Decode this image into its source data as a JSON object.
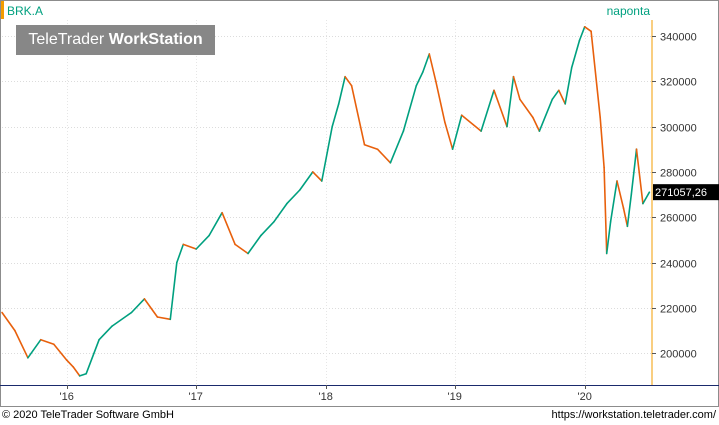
{
  "header": {
    "symbol": "BRK.A",
    "interval": "naponta",
    "brand_left": "TeleTrader",
    "brand_right": "WorkStation"
  },
  "footer": {
    "copyright": "© 2020 TeleTrader Software GmbH",
    "url": "https://workstation.teletrader.com/"
  },
  "colors": {
    "up": "#00a07f",
    "down": "#e8600c",
    "accent": "#f39c00",
    "last_label_bg": "#000000"
  },
  "chart_data": {
    "type": "line",
    "xlabels": [
      "'16",
      "'17",
      "'18",
      "'19",
      "'20"
    ],
    "yticks": [
      200000,
      220000,
      240000,
      260000,
      280000,
      300000,
      320000,
      340000
    ],
    "ytick_labels": [
      "200000",
      "220000",
      "240000",
      "260000",
      "280000",
      "300000",
      "320000",
      "340000"
    ],
    "ylim": [
      186000,
      347000
    ],
    "last_value": 271057.26,
    "last_label": "271057,26",
    "series": [
      {
        "x": [
          2015.5,
          2015.6,
          2015.7,
          2015.8,
          2015.9,
          2016.0,
          2016.05,
          2016.1,
          2016.15,
          2016.25,
          2016.35,
          2016.5,
          2016.6,
          2016.7,
          2016.8,
          2016.85,
          2016.9,
          2017.0,
          2017.1,
          2017.2,
          2017.3,
          2017.4,
          2017.5,
          2017.6,
          2017.7,
          2017.8,
          2017.9,
          2017.97,
          2018.05,
          2018.1,
          2018.15,
          2018.2,
          2018.3,
          2018.4,
          2018.5,
          2018.6,
          2018.7,
          2018.75,
          2018.8,
          2018.85,
          2018.92,
          2018.98,
          2019.05,
          2019.2,
          2019.3,
          2019.4,
          2019.45,
          2019.5,
          2019.6,
          2019.65,
          2019.75,
          2019.8,
          2019.85,
          2019.9,
          2019.96,
          2020.0,
          2020.05,
          2020.12,
          2020.15,
          2020.17,
          2020.2,
          2020.25,
          2020.3,
          2020.33,
          2020.36,
          2020.4,
          2020.45,
          2020.5
        ],
        "y": [
          218000,
          210000,
          198000,
          206000,
          204000,
          197000,
          194000,
          190000,
          191000,
          206000,
          212000,
          218000,
          224000,
          216000,
          215000,
          240000,
          248000,
          246000,
          252000,
          262000,
          248000,
          244000,
          252000,
          258000,
          266000,
          272000,
          280000,
          276000,
          300000,
          310000,
          322000,
          318000,
          292000,
          290000,
          284000,
          298000,
          318000,
          324000,
          332000,
          320000,
          302000,
          290000,
          305000,
          298000,
          316000,
          300000,
          322000,
          312000,
          304000,
          298000,
          312000,
          316000,
          310000,
          326000,
          338000,
          344000,
          342000,
          304000,
          282000,
          244000,
          258000,
          276000,
          264000,
          256000,
          270000,
          290000,
          266000,
          271057.26
        ]
      }
    ]
  }
}
